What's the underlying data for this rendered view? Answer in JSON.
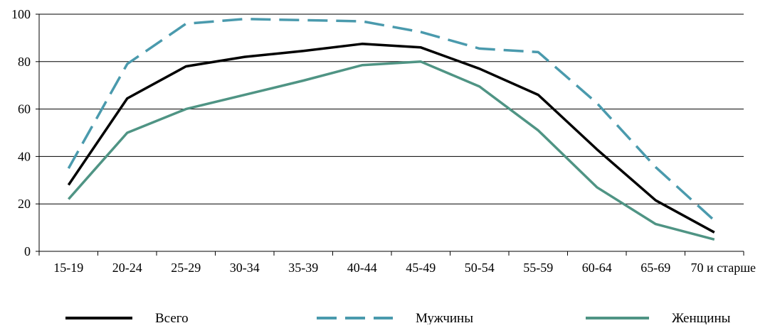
{
  "chart_data": {
    "type": "line",
    "title": "",
    "xlabel": "",
    "ylabel": "",
    "categories": [
      "15-19",
      "20-24",
      "25-29",
      "30-34",
      "35-39",
      "40-44",
      "45-49",
      "50-54",
      "55-59",
      "60-64",
      "65-69",
      "70  и старше"
    ],
    "ylim": [
      0,
      100
    ],
    "yticks": [
      0,
      20,
      40,
      60,
      80,
      100
    ],
    "grid": "horizontal",
    "legend_position": "bottom",
    "series": [
      {
        "name": "Всего",
        "color": "#000000",
        "style": "solid",
        "values": [
          28,
          64.5,
          78,
          82,
          84.5,
          87.5,
          86,
          77,
          66,
          43,
          21.5,
          8
        ]
      },
      {
        "name": "Мужчины",
        "color": "#4a9aad",
        "style": "dashed",
        "values": [
          35,
          79,
          96,
          98,
          97.5,
          97,
          92.5,
          85.5,
          84,
          62.5,
          35.5,
          13
        ]
      },
      {
        "name": "Женщины",
        "color": "#4f9484",
        "style": "solid",
        "values": [
          22,
          50,
          60,
          66,
          72,
          78.5,
          80,
          69.5,
          51,
          27,
          11.5,
          5
        ]
      }
    ]
  }
}
